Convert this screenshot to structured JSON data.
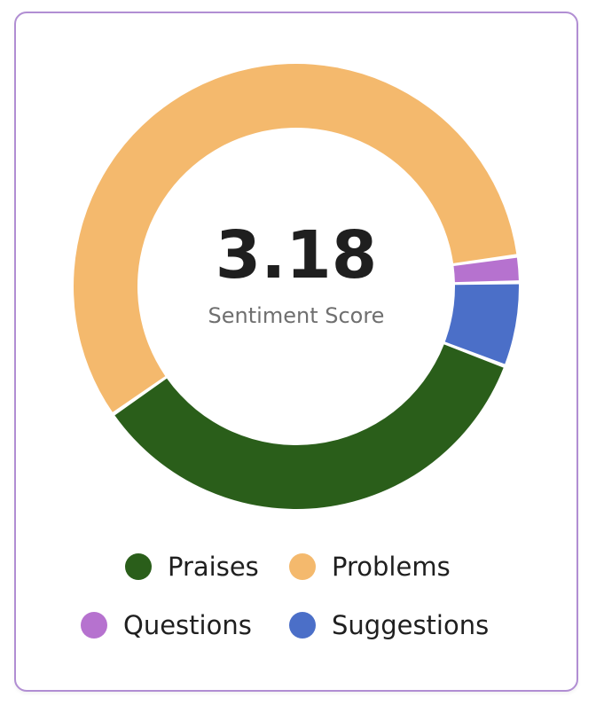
{
  "chart_data": {
    "type": "pie",
    "center_value": "3.18",
    "center_label": "Sentiment Score",
    "categories": [
      "Praises",
      "Problems",
      "Questions",
      "Suggestions"
    ],
    "values": [
      34.5,
      57.5,
      1.9,
      6.1
    ],
    "colors": {
      "Praises": "#2a5e1a",
      "Problems": "#f4b96d",
      "Questions": "#b672cf",
      "Suggestions": "#4b6fc8"
    },
    "legend": [
      "Praises",
      "Problems",
      "Questions",
      "Suggestions"
    ],
    "legend_position": "bottom"
  }
}
